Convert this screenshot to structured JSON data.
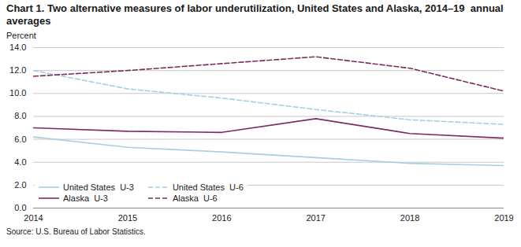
{
  "chart_data": {
    "type": "line",
    "title": "Chart 1. Two alternative measures of labor underutilization, United States and Alaska, 2014–19  annual averages",
    "ylabel": "Percent",
    "caption": "Source: U.S. Bureau of Labor Statistics.",
    "x": [
      2014,
      2015,
      2016,
      2017,
      2018,
      2019
    ],
    "series": [
      {
        "name": "United States  U-3",
        "color": "#a8cfe0",
        "line_style": "solid",
        "values": [
          6.2,
          5.3,
          4.9,
          4.4,
          3.9,
          3.7
        ]
      },
      {
        "name": "United States  U-6",
        "color": "#a8cfe0",
        "line_style": "dashed",
        "values": [
          12.0,
          10.4,
          9.6,
          8.6,
          7.7,
          7.3
        ]
      },
      {
        "name": "Alaska  U-3",
        "color": "#7b2d5e",
        "line_style": "solid",
        "values": [
          7.0,
          6.7,
          6.6,
          7.8,
          6.5,
          6.1
        ]
      },
      {
        "name": "Alaska  U-6",
        "color": "#7b2d5e",
        "line_style": "dashed",
        "values": [
          11.5,
          12.0,
          12.6,
          13.2,
          12.2,
          10.2
        ]
      }
    ],
    "xlim": [
      2014,
      2019
    ],
    "xticks": [
      2014,
      2015,
      2016,
      2017,
      2018,
      2019
    ],
    "ylim": [
      0,
      14
    ],
    "yticks": [
      {
        "value": 0,
        "label": "0.0"
      },
      {
        "value": 2,
        "label": "2.0"
      },
      {
        "value": 4,
        "label": "4.0"
      },
      {
        "value": 6,
        "label": "6.0"
      },
      {
        "value": 8,
        "label": "8.0"
      },
      {
        "value": 10,
        "label": "10.0"
      },
      {
        "value": 12,
        "label": "12.0"
      },
      {
        "value": 14,
        "label": "14.0"
      }
    ],
    "grid": true,
    "legend": "lower left"
  }
}
